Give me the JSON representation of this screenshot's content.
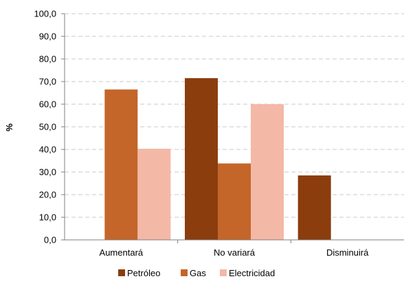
{
  "chart_data": {
    "type": "bar",
    "categories": [
      "Aumentará",
      "No variará",
      "Disminuirá"
    ],
    "series": [
      {
        "name": "Petróleo",
        "color": "#8B3D0E",
        "values": [
          null,
          71.5,
          28.5
        ]
      },
      {
        "name": "Gas",
        "color": "#C4652A",
        "values": [
          66.5,
          33.8,
          null
        ]
      },
      {
        "name": "Electricidad",
        "color": "#F4B8A6",
        "values": [
          40.3,
          60.0,
          null
        ]
      }
    ],
    "ylabel": "%",
    "ylim": [
      0,
      100
    ],
    "yticks": [
      "0,0",
      "10,0",
      "20,0",
      "30,0",
      "40,0",
      "50,0",
      "60,0",
      "70,0",
      "80,0",
      "90,0",
      "100,0"
    ],
    "grid": true,
    "legend_position": "bottom"
  }
}
